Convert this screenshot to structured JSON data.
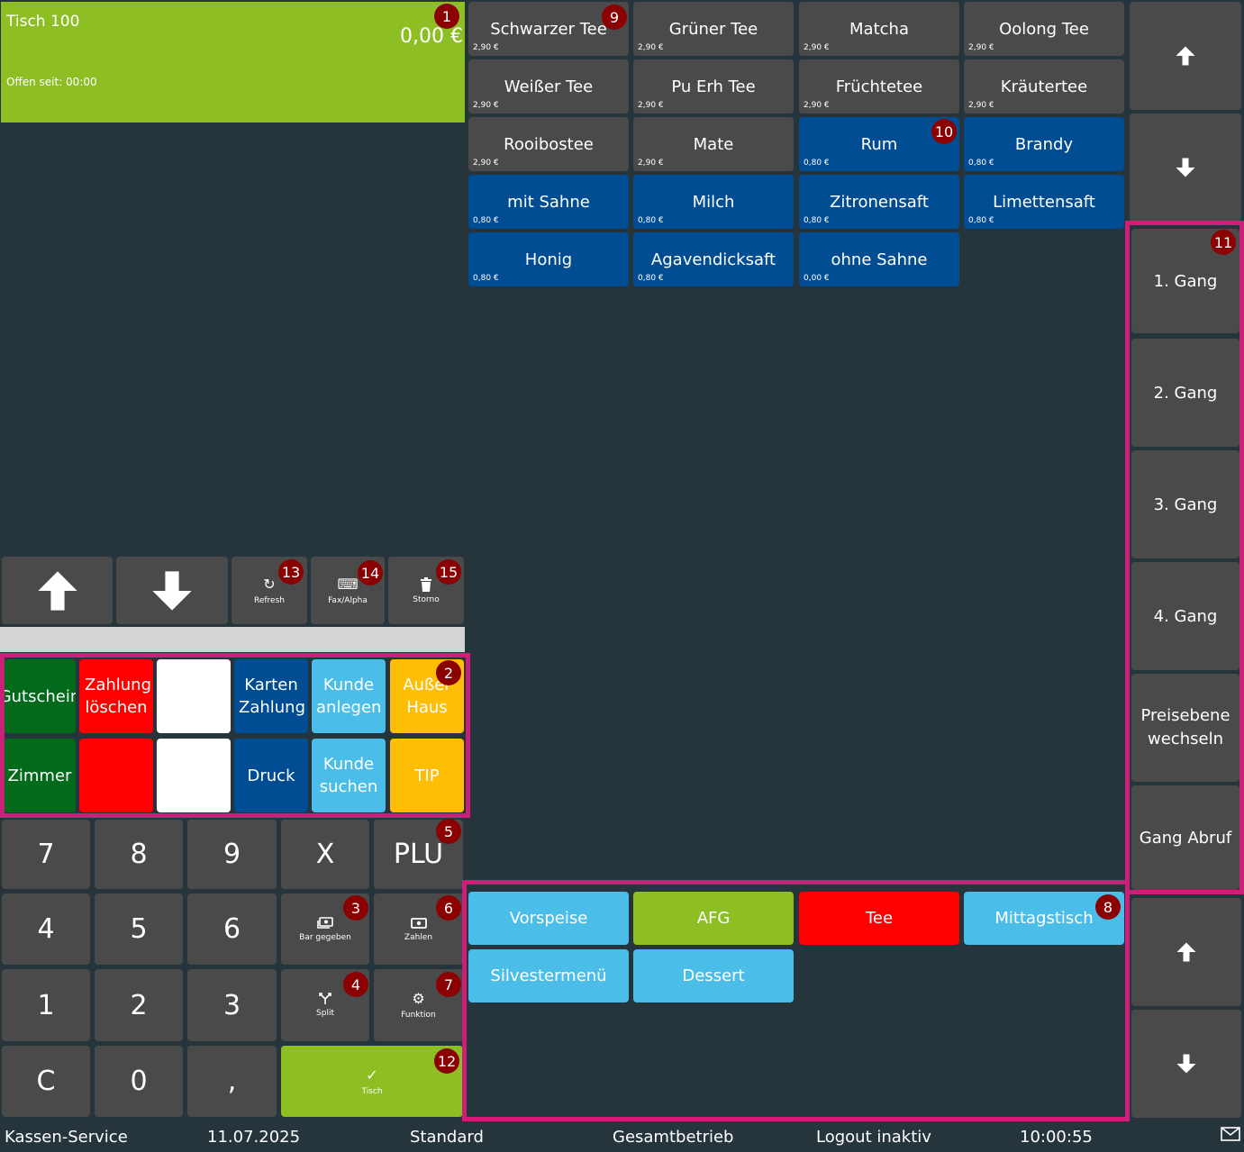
{
  "table_panel": {
    "title": "Tisch 100",
    "amount": "0,00 €",
    "open_since": "Offen seit: 00:00",
    "color": "#8dbf24"
  },
  "products": [
    {
      "name": "Schwarzer Tee",
      "price": "2,90 €",
      "color": "gray"
    },
    {
      "name": "Grüner Tee",
      "price": "2,90 €",
      "color": "gray"
    },
    {
      "name": "Matcha",
      "price": "2,90 €",
      "color": "gray"
    },
    {
      "name": "Oolong Tee",
      "price": "2,90 €",
      "color": "gray"
    },
    {
      "name": "Weißer Tee",
      "price": "2,90 €",
      "color": "gray"
    },
    {
      "name": "Pu Erh Tee",
      "price": "2,90 €",
      "color": "gray"
    },
    {
      "name": "Früchtetee",
      "price": "2,90 €",
      "color": "gray"
    },
    {
      "name": "Kräutertee",
      "price": "2,90 €",
      "color": "gray"
    },
    {
      "name": "Rooibostee",
      "price": "2,90 €",
      "color": "gray"
    },
    {
      "name": "Mate",
      "price": "2,90 €",
      "color": "gray"
    },
    {
      "name": "Rum",
      "price": "0,80 €",
      "color": "blue"
    },
    {
      "name": "Brandy",
      "price": "0,80 €",
      "color": "blue"
    },
    {
      "name": "mit Sahne",
      "price": "0,80 €",
      "color": "blue"
    },
    {
      "name": "Milch",
      "price": "0,80 €",
      "color": "blue"
    },
    {
      "name": "Zitronensaft",
      "price": "0,80 €",
      "color": "blue"
    },
    {
      "name": "Limettensaft",
      "price": "0,80 €",
      "color": "blue"
    },
    {
      "name": "Honig",
      "price": "0,80 €",
      "color": "blue"
    },
    {
      "name": "Agavendicksaft",
      "price": "0,80 €",
      "color": "blue"
    },
    {
      "name": "ohne Sahne",
      "price": "0,00 €",
      "color": "blue"
    }
  ],
  "toolbar": {
    "refresh": "Refresh",
    "fax_alpha": "Fax/Alpha",
    "storno": "Storno"
  },
  "functions": {
    "gutschein": "Gutschein",
    "zahlung_loeschen": "Zahlung löschen",
    "karten_zahlung": "Karten Zahlung",
    "kunde_anlegen": "Kunde anlegen",
    "ausser_haus": "Außer Haus",
    "zimmer": "Zimmer",
    "druck": "Druck",
    "kunde_suchen": "Kunde suchen",
    "tip": "TIP"
  },
  "keypad": {
    "k7": "7",
    "k8": "8",
    "k9": "9",
    "kx": "X",
    "plu": "PLU",
    "k4": "4",
    "k5": "5",
    "k6": "6",
    "bar_gegeben": "Bar gegeben",
    "zahlen": "Zahlen",
    "k1": "1",
    "k2": "2",
    "k3": "3",
    "split": "Split",
    "funktion": "Funktion",
    "kc": "C",
    "k0": "0",
    "comma": ",",
    "tisch": "Tisch"
  },
  "gang_buttons": [
    "1. Gang",
    "2. Gang",
    "3. Gang",
    "4. Gang",
    "Preisebene wechseln",
    "Gang Abruf"
  ],
  "categories": [
    {
      "name": "Vorspeise",
      "color": "#4bbde9"
    },
    {
      "name": "AFG",
      "color": "#8dbf24"
    },
    {
      "name": "Tee",
      "color": "#ff0000"
    },
    {
      "name": "Mittagstisch",
      "color": "#4bbde9"
    },
    {
      "name": "Silvestermenü",
      "color": "#4bbde9"
    },
    {
      "name": "Dessert",
      "color": "#4bbde9"
    }
  ],
  "badges": {
    "b1": "1",
    "b2": "2",
    "b3": "3",
    "b4": "4",
    "b5": "5",
    "b6": "6",
    "b7": "7",
    "b8": "8",
    "b9": "9",
    "b10": "10",
    "b11": "11",
    "b12": "12",
    "b13": "13",
    "b14": "14",
    "b15": "15"
  },
  "status_bar": {
    "user": "Kassen-Service",
    "date": "11.07.2025",
    "mode": "Standard",
    "operation": "Gesamtbetrieb",
    "logout": "Logout inaktiv",
    "time": "10:00:55"
  },
  "colors": {
    "accent_frame": "#cc1f7a",
    "badge": "#8b0000",
    "product_gray": "#4a4a4a",
    "product_blue": "#014d94"
  }
}
